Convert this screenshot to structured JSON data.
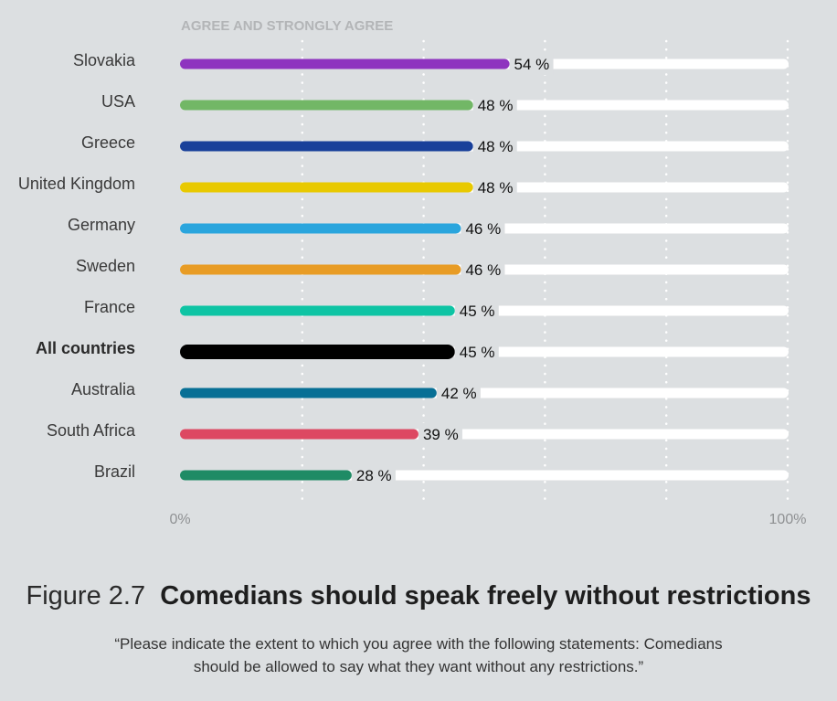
{
  "chart_data": {
    "type": "bar",
    "orientation": "horizontal",
    "header": "AGREE AND STRONGLY AGREE",
    "categories": [
      "Slovakia",
      "USA",
      "Greece",
      "United Kingdom",
      "Germany",
      "Sweden",
      "France",
      "All countries",
      "Australia",
      "South Africa",
      "Brazil"
    ],
    "values": [
      54,
      48,
      48,
      48,
      46,
      46,
      45,
      45,
      42,
      39,
      28
    ],
    "value_labels": [
      "54 %",
      "48 %",
      "48 %",
      "48 %",
      "46 %",
      "46 %",
      "45 %",
      "45 %",
      "42 %",
      "39 %",
      "28 %"
    ],
    "colors": [
      "#8e34bf",
      "#72b766",
      "#19409a",
      "#e8c900",
      "#2aa5dd",
      "#e89c25",
      "#0ec4a4",
      "#000000",
      "#076f95",
      "#dd4862",
      "#1f8b65"
    ],
    "bold_categories": [
      "All countries"
    ],
    "xlim": [
      0,
      100
    ],
    "x_tick_labels": [
      "0%",
      "100%"
    ],
    "grid": "dotted vertical every 20%",
    "track_color": "#ffffff"
  },
  "figure": {
    "number": "Figure 2.7",
    "title": "Comedians should speak freely without restrictions",
    "subtitle_line1": "“Please indicate the extent to which you agree with the following statements: Comedians",
    "subtitle_line2": "should be allowed to say what they want without any restrictions.”"
  }
}
